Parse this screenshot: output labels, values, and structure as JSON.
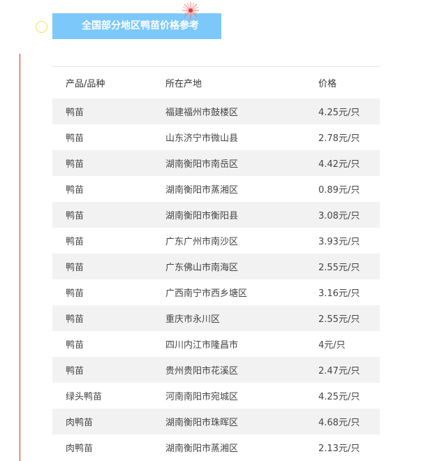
{
  "title": "全国部分地区鸭苗价格参考",
  "columns": [
    "产品/品种",
    "所在产地",
    "价格"
  ],
  "rows": [
    [
      "鸭苗",
      "福建福州市鼓楼区",
      "4.25元/只"
    ],
    [
      "鸭苗",
      "山东济宁市微山县",
      "2.78元/只"
    ],
    [
      "鸭苗",
      "湖南衡阳市南岳区",
      "4.42元/只"
    ],
    [
      "鸭苗",
      "湖南衡阳市蒸湘区",
      "0.89元/只"
    ],
    [
      "鸭苗",
      "湖南衡阳市衡阳县",
      "3.08元/只"
    ],
    [
      "鸭苗",
      "广东广州市南沙区",
      "3.93元/只"
    ],
    [
      "鸭苗",
      "广东佛山市南海区",
      "2.55元/只"
    ],
    [
      "鸭苗",
      "广西南宁市西乡塘区",
      "3.16元/只"
    ],
    [
      "鸭苗",
      "重庆市永川区",
      "2.55元/只"
    ],
    [
      "鸭苗",
      "四川内江市隆昌市",
      "4元/只"
    ],
    [
      "鸭苗",
      "贵州贵阳市花溪区",
      "2.47元/只"
    ],
    [
      "绿头鸭苗",
      "河南南阳市宛城区",
      "4.25元/只"
    ],
    [
      "肉鸭苗",
      "湖南衡阳市珠晖区",
      "4.68元/只"
    ],
    [
      "肉鸭苗",
      "湖南衡阳市蒸湘区",
      "2.13元/只"
    ]
  ],
  "colors": {
    "banner": "#7cc8fb",
    "accent_line": "#e8231a",
    "circle": "#f3e35a",
    "stripe": "#f2f2f2"
  }
}
